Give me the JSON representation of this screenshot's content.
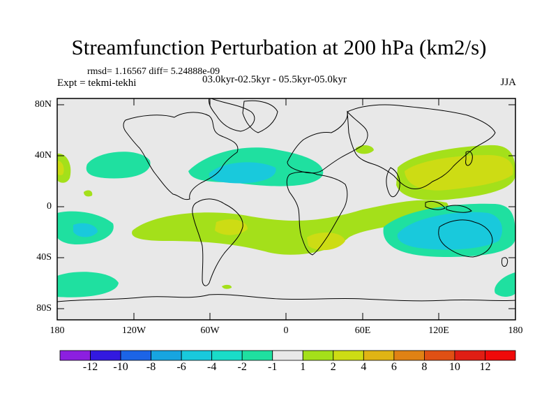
{
  "title": "Streamfunction Perturbation at 200 hPa (km2/s)",
  "stats": "rmsd= 1.16567 diff= 5.24888e-09",
  "experiment": "Expt = tekmi-tekhi",
  "period": "03.0kyr-02.5kyr - 05.5kyr-05.0kyr",
  "season": "JJA",
  "lat_labels": [
    "80N",
    "40N",
    "0",
    "40S",
    "80S"
  ],
  "lon_labels": [
    "180",
    "120W",
    "60W",
    "0",
    "60E",
    "120E",
    "180"
  ],
  "colorbar": {
    "labels": [
      "-12",
      "-10",
      "-8",
      "-6",
      "-4",
      "-2",
      "-1",
      "1",
      "2",
      "4",
      "6",
      "8",
      "10",
      "12"
    ],
    "colors": [
      "#8c1fe0",
      "#3219e0",
      "#1c64e6",
      "#17a5e0",
      "#19c9dc",
      "#1adcc8",
      "#1fe0a0",
      "#e8e8e8",
      "#a4e01a",
      "#cddc14",
      "#e0b414",
      "#e08214",
      "#e05014",
      "#e01e14",
      "#f00a0a"
    ]
  }
}
